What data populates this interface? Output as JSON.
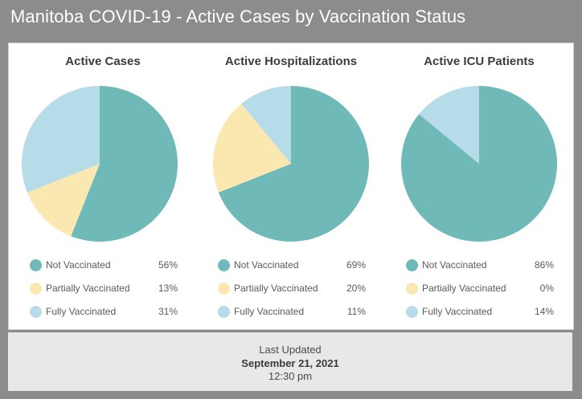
{
  "title": "Manitoba COVID-19 - Active Cases by Vaccination Status",
  "colors": {
    "not_vaccinated": "#6fbab8",
    "partially_vaccinated": "#fbe8b0",
    "fully_vaccinated": "#b6dbe9"
  },
  "footer": {
    "line1": "Last Updated",
    "line2": "September 21, 2021",
    "line3": "12:30 pm"
  },
  "chart_data": [
    {
      "type": "pie",
      "title": "Active Cases",
      "categories": [
        "Not Vaccinated",
        "Partially Vaccinated",
        "Fully Vaccinated"
      ],
      "values": [
        56,
        13,
        31
      ],
      "labels": [
        "56%",
        "13%",
        "31%"
      ]
    },
    {
      "type": "pie",
      "title": "Active Hospitalizations",
      "categories": [
        "Not Vaccinated",
        "Partially Vaccinated",
        "Fully Vaccinated"
      ],
      "values": [
        69,
        20,
        11
      ],
      "labels": [
        "69%",
        "20%",
        "11%"
      ]
    },
    {
      "type": "pie",
      "title": "Active ICU Patients",
      "categories": [
        "Not Vaccinated",
        "Partially Vaccinated",
        "Fully Vaccinated"
      ],
      "values": [
        86,
        0,
        14
      ],
      "labels": [
        "86%",
        "0%",
        "14%"
      ]
    }
  ]
}
